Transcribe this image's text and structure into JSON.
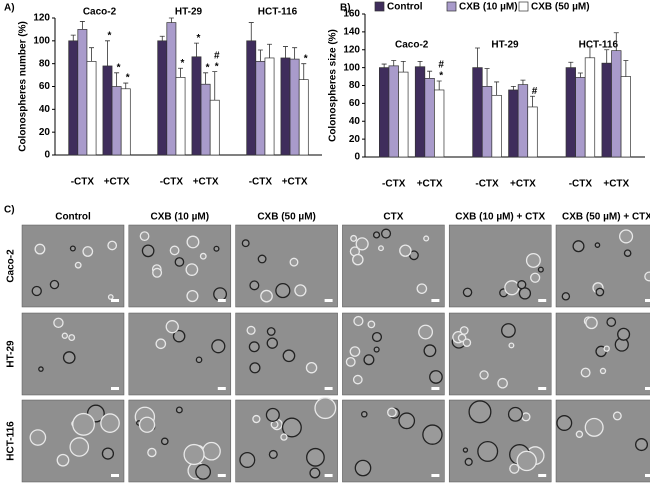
{
  "chart_data": [
    {
      "type": "bar",
      "panel": "A)",
      "y_label": "Colonospheres number (%)",
      "groups": [
        "Caco-2",
        "HT-29",
        "HCT-116"
      ],
      "categories": [
        "-CTX",
        "+CTX",
        "-CTX",
        "+CTX",
        "-CTX",
        "+CTX"
      ],
      "ylim": [
        0,
        120
      ],
      "yticks": [
        0,
        20,
        40,
        60,
        80,
        100,
        120
      ],
      "series": [
        {
          "name": "Control",
          "color": "#3f2d5c",
          "values": [
            100,
            78,
            100,
            86,
            100,
            85
          ],
          "errors": [
            5,
            22,
            4,
            12,
            16,
            10
          ],
          "markers": [
            null,
            [
              "*"
            ],
            null,
            [
              "*"
            ],
            null,
            null
          ]
        },
        {
          "name": "CXB (10 µM)",
          "color": "#a99bcb",
          "values": [
            110,
            60,
            116,
            62,
            82,
            84
          ],
          "errors": [
            7,
            12,
            4,
            10,
            10,
            10
          ],
          "markers": [
            null,
            [
              "*"
            ],
            null,
            [
              "*"
            ],
            null,
            null
          ]
        },
        {
          "name": "CXB (50 µM)",
          "color": "#ffffff",
          "values": [
            82,
            58,
            68,
            48,
            85,
            66
          ],
          "errors": [
            12,
            5,
            8,
            25,
            12,
            14
          ],
          "markers": [
            null,
            [
              "*"
            ],
            [
              "*"
            ],
            [
              "#",
              "*"
            ],
            null,
            [
              "*"
            ]
          ]
        }
      ]
    },
    {
      "type": "bar",
      "panel": "B)",
      "y_label": "Colonospheres size (%)",
      "groups": [
        "Caco-2",
        "HT-29",
        "HCT-116"
      ],
      "legend": "top",
      "categories": [
        "-CTX",
        "+CTX",
        "-CTX",
        "+CTX",
        "-CTX",
        "+CTX"
      ],
      "ylim": [
        0,
        160
      ],
      "yticks": [
        0,
        20,
        40,
        60,
        80,
        100,
        120,
        140,
        160
      ],
      "series": [
        {
          "name": "Control",
          "color": "#3f2d5c",
          "values": [
            100,
            101,
            100,
            75,
            100,
            105
          ],
          "errors": [
            4,
            6,
            22,
            4,
            6,
            15
          ],
          "markers": [
            null,
            null,
            null,
            null,
            null,
            null
          ]
        },
        {
          "name": "CXB (10 µM)",
          "color": "#a99bcb",
          "values": [
            102,
            88,
            79,
            81,
            89,
            119
          ],
          "errors": [
            6,
            8,
            20,
            5,
            5,
            20
          ],
          "markers": [
            null,
            null,
            null,
            null,
            null,
            null
          ]
        },
        {
          "name": "CXB (50 µM)",
          "color": "#ffffff",
          "values": [
            95,
            75,
            69,
            56,
            111,
            90
          ],
          "errors": [
            12,
            10,
            15,
            12,
            12,
            18
          ],
          "markers": [
            null,
            [
              "#",
              "*"
            ],
            null,
            [
              "#"
            ],
            null,
            null
          ]
        }
      ]
    }
  ],
  "panel_c": {
    "label": "C)",
    "columns": [
      "Control",
      "CXB (10 µM)",
      "CXB  (50 µM)",
      "CTX",
      "CXB (10 µM) + CTX",
      "CXB (50 µM) + CTX"
    ],
    "rows": [
      "Caco-2",
      "HT-29",
      "HCT-116"
    ]
  }
}
